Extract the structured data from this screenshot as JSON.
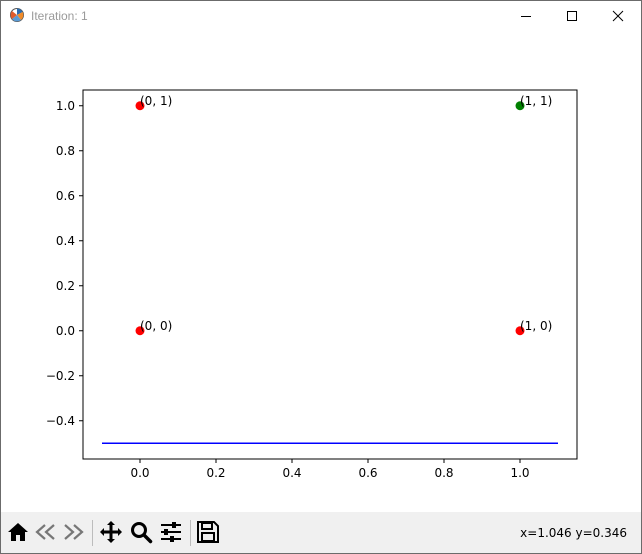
{
  "window": {
    "title": "Iteration: 1",
    "icon": "matplotlib-logo-icon",
    "controls": [
      "minimize-icon",
      "maximize-icon",
      "close-icon"
    ]
  },
  "toolbar": {
    "tools": [
      "home-icon",
      "back-arrow-icon",
      "forward-arrow-icon",
      "pan-move-icon",
      "zoom-magnifier-icon",
      "configure-subplots-icon",
      "save-floppy-icon"
    ],
    "status": "x=1.046 y=0.346"
  },
  "chart_data": {
    "type": "scatter",
    "title": "",
    "xlabel": "",
    "ylabel": "",
    "xlim": [
      -0.15,
      1.15
    ],
    "ylim": [
      -0.57,
      1.07
    ],
    "xticks": [
      0.0,
      0.2,
      0.4,
      0.6,
      0.8,
      1.0
    ],
    "xtick_labels": [
      "0.0",
      "0.2",
      "0.4",
      "0.6",
      "0.8",
      "1.0"
    ],
    "yticks": [
      -0.4,
      -0.2,
      0.0,
      0.2,
      0.4,
      0.6,
      0.8,
      1.0
    ],
    "ytick_labels": [
      "−0.4",
      "−0.2",
      "0.0",
      "0.2",
      "0.4",
      "0.6",
      "0.8",
      "1.0"
    ],
    "grid": false,
    "points": [
      {
        "x": 0,
        "y": 0,
        "color": "#ff0000",
        "label": "(0, 0)"
      },
      {
        "x": 0,
        "y": 1,
        "color": "#ff0000",
        "label": "(0, 1)"
      },
      {
        "x": 1,
        "y": 0,
        "color": "#ff0000",
        "label": "(1, 0)"
      },
      {
        "x": 1,
        "y": 1,
        "color": "#008000",
        "label": "(1, 1)"
      }
    ],
    "line": {
      "x": [
        -0.1,
        1.1
      ],
      "y": [
        -0.5,
        -0.5
      ],
      "color": "#0000ff"
    }
  }
}
